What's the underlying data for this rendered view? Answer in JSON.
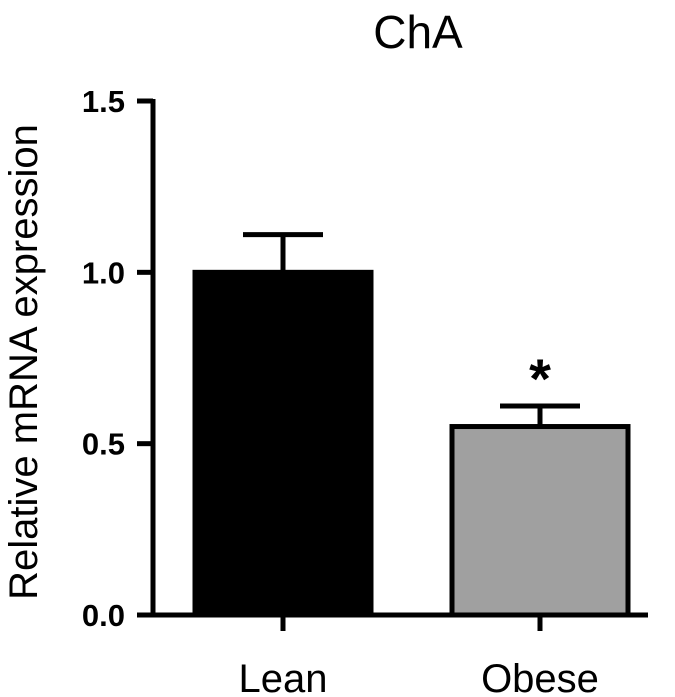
{
  "chart_data": {
    "type": "bar",
    "title": "ChA",
    "xlabel": "",
    "ylabel": "Relative mRNA expression",
    "ylim": [
      0,
      1.5
    ],
    "yticks": [
      "0.0",
      "0.5",
      "1.0",
      "1.5"
    ],
    "categories": [
      "Lean",
      "Obese"
    ],
    "values": [
      1.0,
      0.55
    ],
    "errors": [
      0.11,
      0.06
    ],
    "colors": [
      "#000000",
      "#a0a0a0"
    ],
    "annotations": [
      "",
      "*"
    ],
    "grid": false,
    "legend": "none"
  }
}
